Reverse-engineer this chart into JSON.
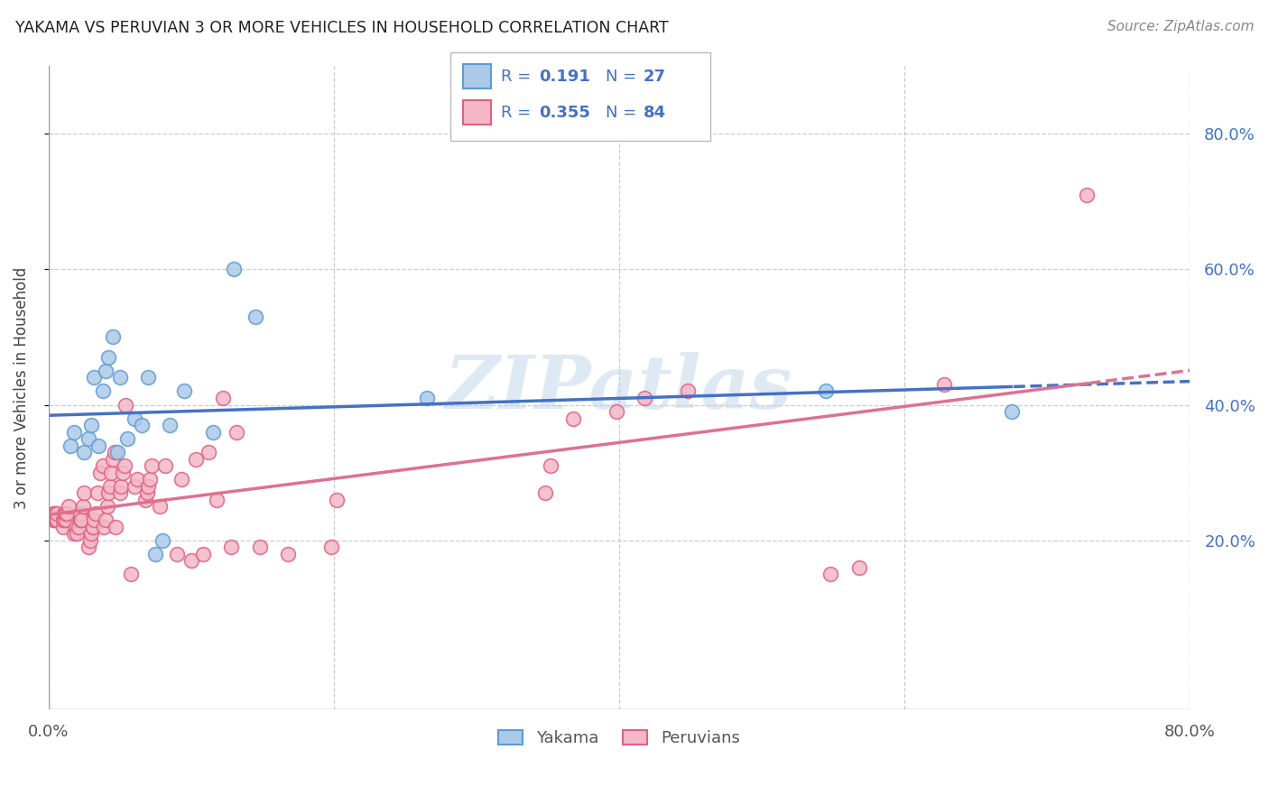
{
  "title": "YAKAMA VS PERUVIAN 3 OR MORE VEHICLES IN HOUSEHOLD CORRELATION CHART",
  "source": "Source: ZipAtlas.com",
  "ylabel": "3 or more Vehicles in Household",
  "watermark": "ZIPatlas",
  "xlim": [
    0.0,
    0.8
  ],
  "ylim": [
    -0.05,
    0.9
  ],
  "xtick_vals": [
    0.0,
    0.2,
    0.4,
    0.6,
    0.8
  ],
  "xtick_labels": [
    "0.0%",
    "",
    "",
    "",
    "80.0%"
  ],
  "ytick_vals": [
    0.2,
    0.4,
    0.6,
    0.8
  ],
  "ytick_labels": [
    "20.0%",
    "40.0%",
    "60.0%",
    "80.0%"
  ],
  "grid_ytick_vals": [
    0.2,
    0.4,
    0.6,
    0.8
  ],
  "grid_xtick_vals": [
    0.0,
    0.2,
    0.4,
    0.6,
    0.8
  ],
  "yakama_color": "#adc9e8",
  "yakama_edge_color": "#5b9bd5",
  "peruvian_color": "#f4b8c8",
  "peruvian_edge_color": "#e06080",
  "yakama_line_color": "#4472c4",
  "peruvian_line_color": "#e07090",
  "legend_text_color": "#4472c4",
  "yakama_R": 0.191,
  "yakama_N": 27,
  "peruvian_R": 0.355,
  "peruvian_N": 84,
  "yakama_x": [
    0.015,
    0.018,
    0.025,
    0.028,
    0.03,
    0.032,
    0.035,
    0.038,
    0.04,
    0.042,
    0.045,
    0.048,
    0.05,
    0.055,
    0.06,
    0.065,
    0.07,
    0.075,
    0.08,
    0.085,
    0.095,
    0.115,
    0.13,
    0.145,
    0.265,
    0.545,
    0.675
  ],
  "yakama_y": [
    0.34,
    0.36,
    0.33,
    0.35,
    0.37,
    0.44,
    0.34,
    0.42,
    0.45,
    0.47,
    0.5,
    0.33,
    0.44,
    0.35,
    0.38,
    0.37,
    0.44,
    0.18,
    0.2,
    0.37,
    0.42,
    0.36,
    0.6,
    0.53,
    0.41,
    0.42,
    0.39
  ],
  "peruvian_x": [
    0.003,
    0.003,
    0.004,
    0.004,
    0.005,
    0.005,
    0.005,
    0.006,
    0.006,
    0.01,
    0.01,
    0.011,
    0.011,
    0.012,
    0.012,
    0.013,
    0.014,
    0.018,
    0.019,
    0.02,
    0.021,
    0.022,
    0.022,
    0.023,
    0.024,
    0.025,
    0.028,
    0.029,
    0.03,
    0.031,
    0.031,
    0.032,
    0.033,
    0.034,
    0.036,
    0.038,
    0.039,
    0.04,
    0.041,
    0.042,
    0.043,
    0.044,
    0.045,
    0.046,
    0.047,
    0.05,
    0.051,
    0.052,
    0.053,
    0.054,
    0.058,
    0.06,
    0.062,
    0.068,
    0.069,
    0.07,
    0.071,
    0.072,
    0.078,
    0.082,
    0.09,
    0.093,
    0.1,
    0.103,
    0.108,
    0.112,
    0.118,
    0.122,
    0.128,
    0.132,
    0.148,
    0.168,
    0.198,
    0.202,
    0.348,
    0.352,
    0.368,
    0.398,
    0.418,
    0.448,
    0.548,
    0.568,
    0.628,
    0.728
  ],
  "peruvian_y": [
    0.23,
    0.24,
    0.23,
    0.24,
    0.23,
    0.23,
    0.24,
    0.23,
    0.24,
    0.22,
    0.23,
    0.23,
    0.24,
    0.23,
    0.24,
    0.24,
    0.25,
    0.21,
    0.22,
    0.21,
    0.22,
    0.23,
    0.24,
    0.23,
    0.25,
    0.27,
    0.19,
    0.2,
    0.21,
    0.22,
    0.22,
    0.23,
    0.24,
    0.27,
    0.3,
    0.31,
    0.22,
    0.23,
    0.25,
    0.27,
    0.28,
    0.3,
    0.32,
    0.33,
    0.22,
    0.27,
    0.28,
    0.3,
    0.31,
    0.4,
    0.15,
    0.28,
    0.29,
    0.26,
    0.27,
    0.28,
    0.29,
    0.31,
    0.25,
    0.31,
    0.18,
    0.29,
    0.17,
    0.32,
    0.18,
    0.33,
    0.26,
    0.41,
    0.19,
    0.36,
    0.19,
    0.18,
    0.19,
    0.26,
    0.27,
    0.31,
    0.38,
    0.39,
    0.41,
    0.42,
    0.15,
    0.16,
    0.43,
    0.71
  ]
}
